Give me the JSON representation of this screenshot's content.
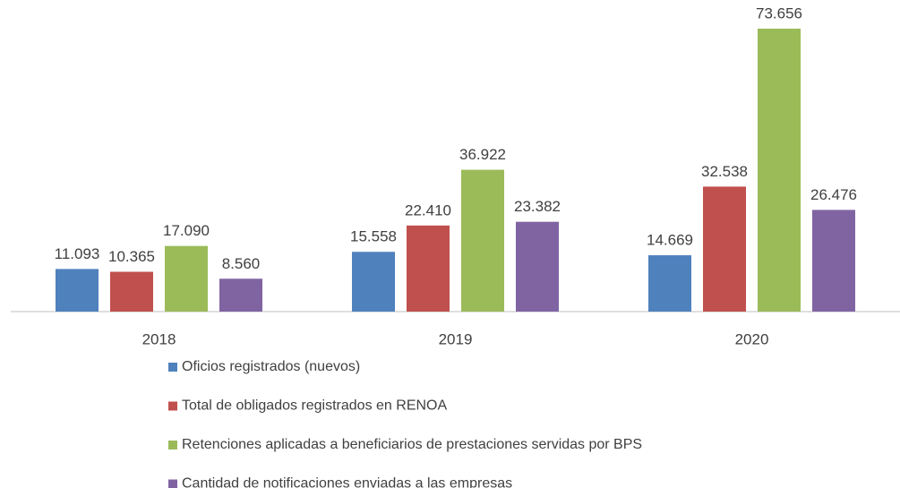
{
  "chart_data": {
    "type": "bar",
    "categories": [
      "2018",
      "2019",
      "2020"
    ],
    "series": [
      {
        "name": "Oficios registrados (nuevos)",
        "color": "#4f81bd",
        "values": [
          11093,
          15558,
          14669
        ],
        "value_labels": [
          "11.093",
          "15.558",
          "14.669"
        ]
      },
      {
        "name": "Total de obligados registrados en RENOA",
        "color": "#c0504d",
        "values": [
          10365,
          22410,
          32538
        ],
        "value_labels": [
          "10.365",
          "22.410",
          "32.538"
        ]
      },
      {
        "name": "Retenciones aplicadas a beneficiarios de prestaciones servidas por BPS",
        "color": "#9bbb59",
        "values": [
          17090,
          36922,
          73656
        ],
        "value_labels": [
          "17.090",
          "36.922",
          "73.656"
        ]
      },
      {
        "name": "Cantidad de notificaciones enviadas a las empresas",
        "color": "#8064a2",
        "values": [
          8560,
          23382,
          26476
        ],
        "value_labels": [
          "8.560",
          "23.382",
          "26.476"
        ]
      }
    ],
    "legend": "bottom"
  }
}
